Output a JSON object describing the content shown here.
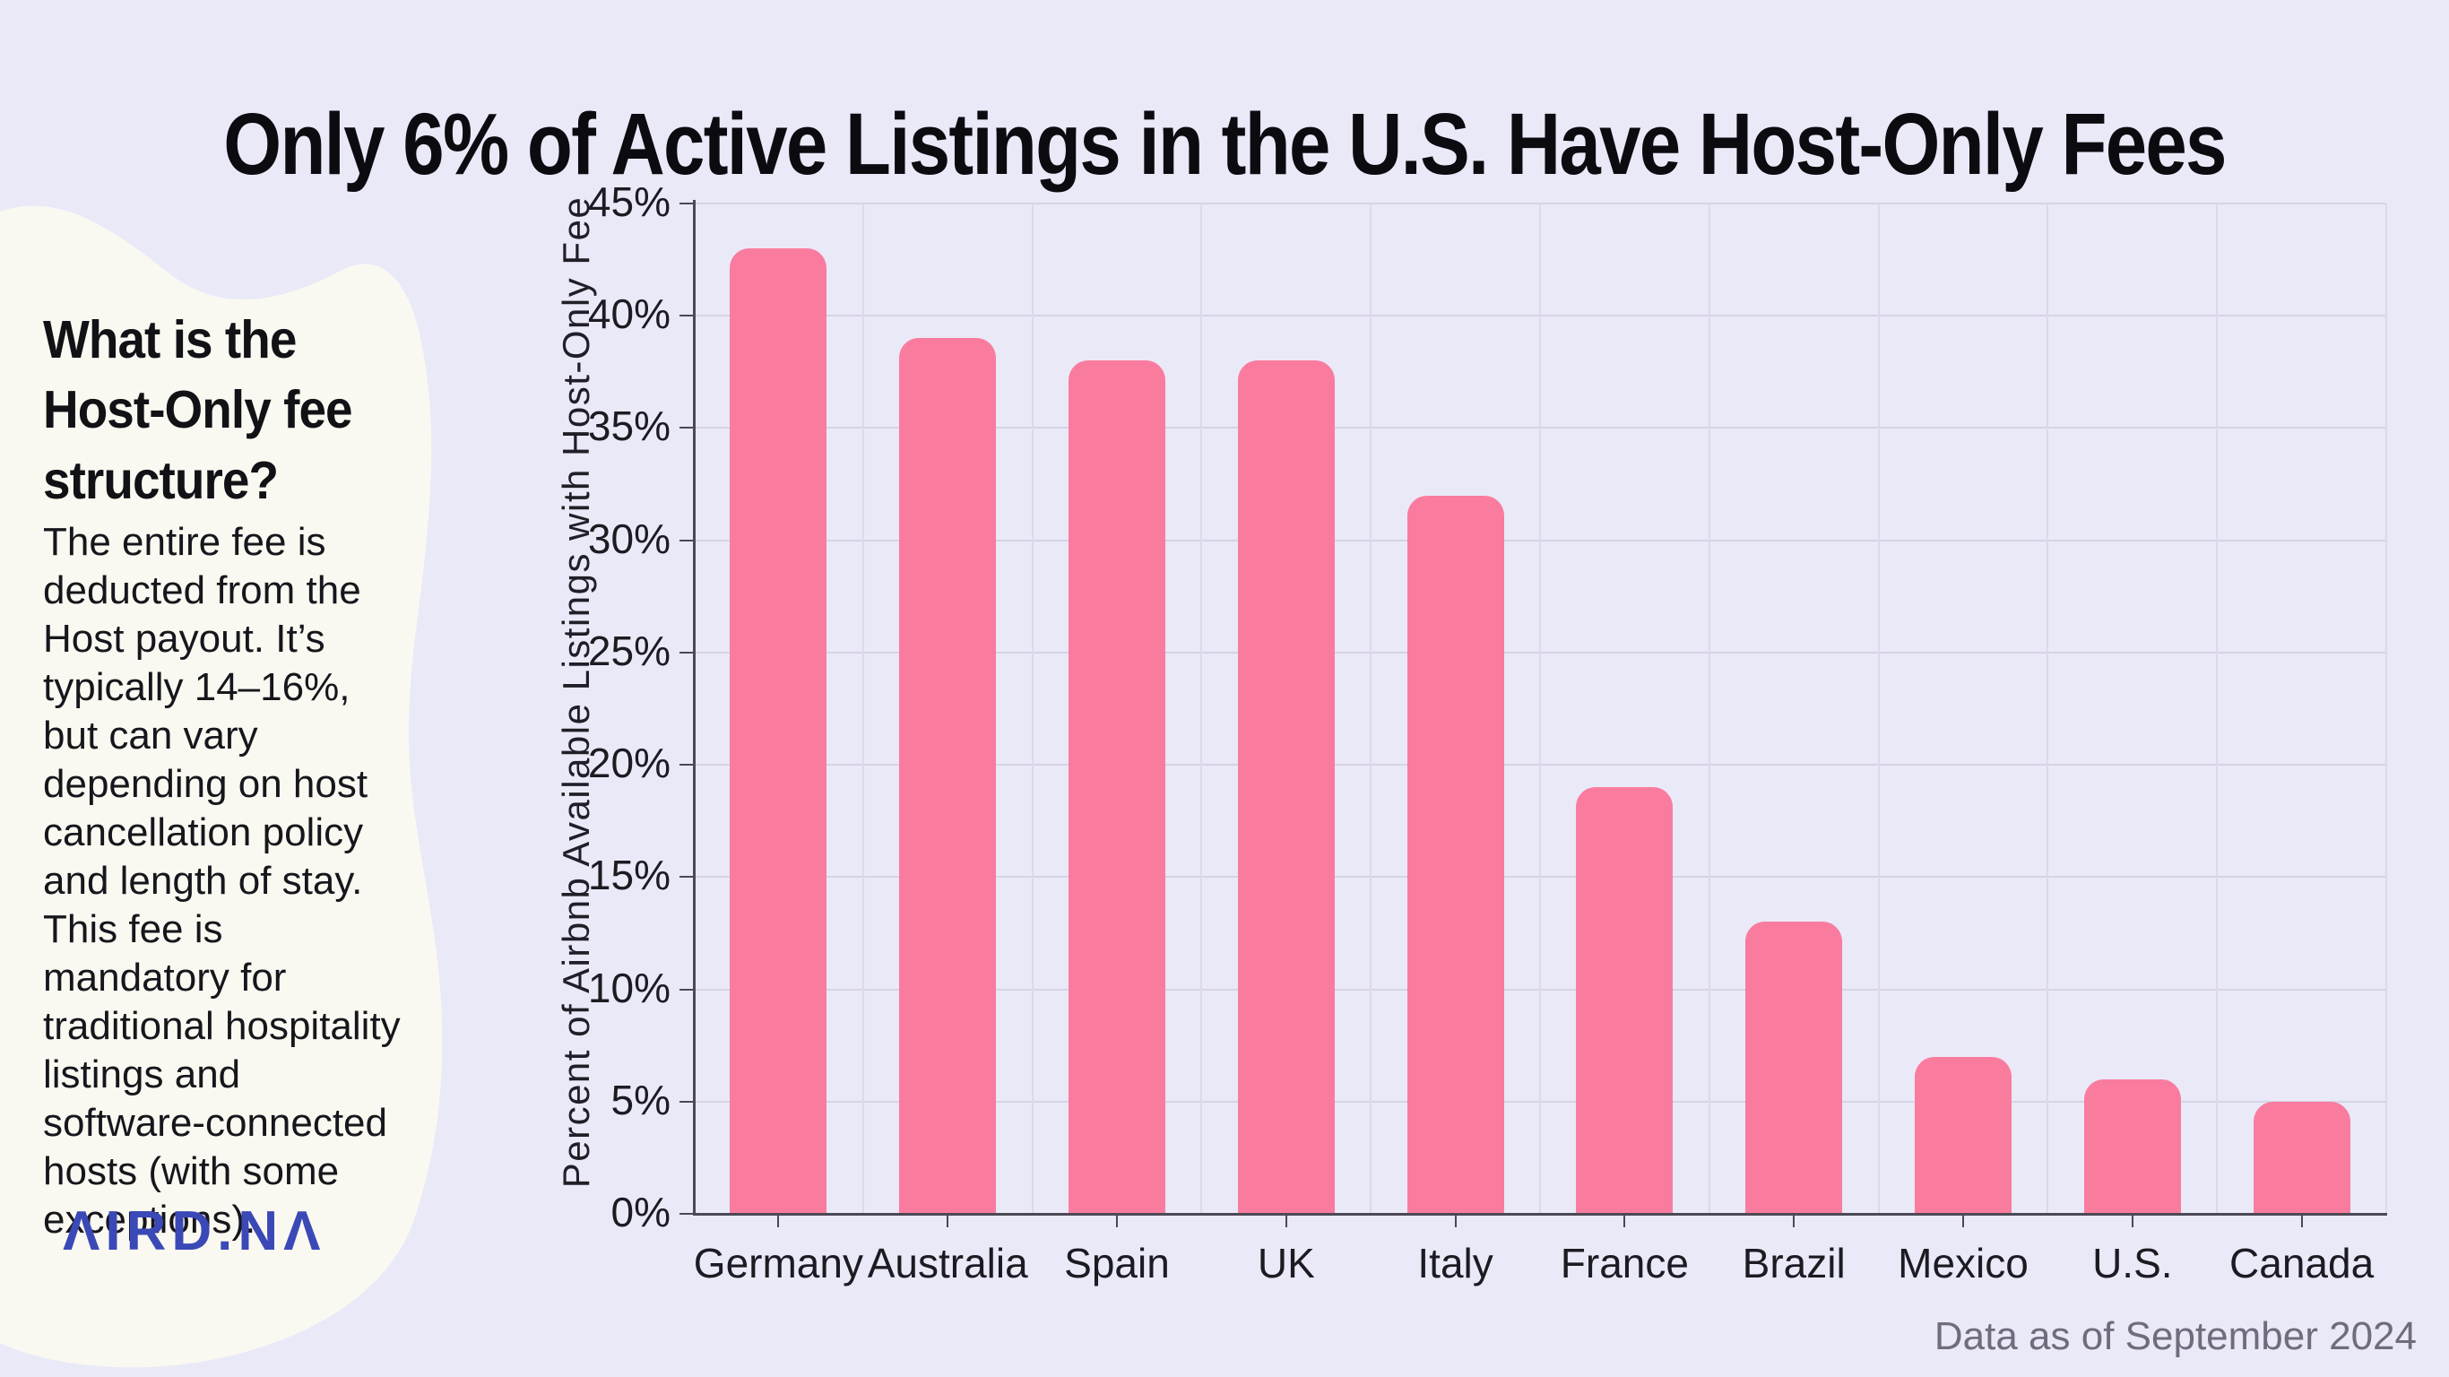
{
  "page": {
    "title": "Only 6% of Active Listings in the U.S. Have Host-Only Fees",
    "footnote": "Data as of September 2024",
    "background_color": "#EAE9F8"
  },
  "sidebar": {
    "heading_lines": [
      "What is the",
      "Host-Only fee",
      "structure?"
    ],
    "body_lines": [
      "The entire fee is",
      "deducted from the",
      "Host payout. It’s",
      "typically 14–16%,",
      "but can vary",
      "depending on host",
      "cancellation policy",
      "and length of stay.",
      "This fee is",
      "mandatory for",
      "traditional hospitality",
      "listings and",
      "software-connected",
      "hosts (with some",
      "exceptions)."
    ],
    "logo": "ΛIRD.NΛ",
    "blob_color": "#FAF9F1",
    "logo_color": "#3B49B7"
  },
  "chart_data": {
    "type": "bar",
    "title": "Only 6% of Active Listings in the U.S. Have Host-Only Fees",
    "categories": [
      "Germany",
      "Australia",
      "Spain",
      "UK",
      "Italy",
      "France",
      "Brazil",
      "Mexico",
      "U.S.",
      "Canada"
    ],
    "values": [
      43,
      39,
      38,
      38,
      32,
      19,
      13,
      7,
      6,
      5
    ],
    "xlabel": "",
    "ylabel": "Percent of Airbnb Available Listings with Host-Only Fee",
    "ylim": [
      0,
      45
    ],
    "ytick_step": 5,
    "ytick_suffix": "%",
    "grid": true,
    "legend": false,
    "bar_color": "#F97C9E"
  }
}
